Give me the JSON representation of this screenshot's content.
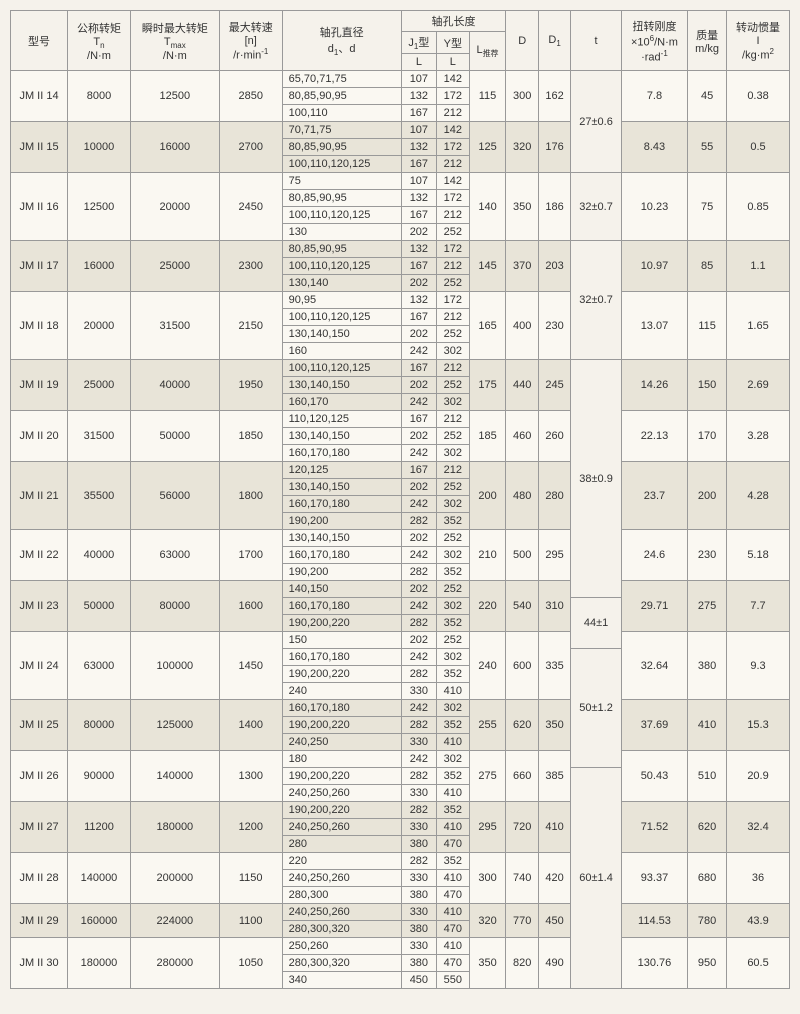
{
  "headers": {
    "model": "型号",
    "tn": "公称转矩<br>T<sub>n</sub><br>/N·m",
    "tmax": "瞬时最大转矩<br>T<sub>max</sub><br>/N·m",
    "n": "最大转速<br>[n]<br>/r·min<sup>-1</sup>",
    "diameter": "轴孔直径<br>d<sub>1</sub>、d",
    "length": "轴孔长度",
    "j1": "J<sub>1</sub>型",
    "y": "Y型",
    "lrec": "L<sub>推荐</sub>",
    "L": "L",
    "D": "D",
    "D1": "D<sub>1</sub>",
    "t": "t",
    "stiffness": "扭转刚度<br>×10<sup>6</sup>/N·m<br>·rad<sup>-1</sup>",
    "mass": "质量<br>m/kg",
    "inertia": "转动惯量<br>I<br>/kg·m<sup>2</sup>"
  },
  "groups": [
    {
      "model": "JM II 14",
      "tn": "8000",
      "tmax": "12500",
      "n": "2850",
      "dim": {
        "D": "115",
        "D1": "300",
        "t": "162"
      },
      "tgroup": "27±0.6",
      "stiff": "7.8",
      "mass": "45",
      "inertia": "0.38",
      "rows": [
        {
          "d": "65,70,71,75",
          "j": "107",
          "y": "142"
        },
        {
          "d": "80,85,90,95",
          "j": "132",
          "y": "172"
        },
        {
          "d": "100,110",
          "j": "167",
          "y": "212"
        }
      ],
      "alt": false
    },
    {
      "model": "JM II 15",
      "tn": "10000",
      "tmax": "16000",
      "n": "2700",
      "dim": {
        "D": "125",
        "D1": "320",
        "t": "176"
      },
      "stiff": "8.43",
      "mass": "55",
      "inertia": "0.5",
      "rows": [
        {
          "d": "70,71,75",
          "j": "107",
          "y": "142"
        },
        {
          "d": "80,85,90,95",
          "j": "132",
          "y": "172"
        },
        {
          "d": "100,110,120,125",
          "j": "167",
          "y": "212"
        }
      ],
      "alt": true
    },
    {
      "model": "JM II 16",
      "tn": "12500",
      "tmax": "20000",
      "n": "2450",
      "dim": {
        "D": "140",
        "D1": "350",
        "t": "186"
      },
      "tgroup": "32±0.7",
      "stiff": "10.23",
      "mass": "75",
      "inertia": "0.85",
      "rows": [
        {
          "d": "75",
          "j": "107",
          "y": "142"
        },
        {
          "d": "80,85,90,95",
          "j": "132",
          "y": "172"
        },
        {
          "d": "100,110,120,125",
          "j": "167",
          "y": "212"
        },
        {
          "d": "130",
          "j": "202",
          "y": "252"
        }
      ],
      "alt": false
    },
    {
      "model": "JM II 17",
      "tn": "16000",
      "tmax": "25000",
      "n": "2300",
      "dim": {
        "D": "145",
        "D1": "370",
        "t": "203"
      },
      "tgroup": "32±0.7",
      "stiff": "10.97",
      "mass": "85",
      "inertia": "1.1",
      "rows": [
        {
          "d": "80,85,90,95",
          "j": "132",
          "y": "172"
        },
        {
          "d": "100,110,120,125",
          "j": "167",
          "y": "212"
        },
        {
          "d": "130,140",
          "j": "202",
          "y": "252"
        }
      ],
      "alt": true
    },
    {
      "model": "JM II 18",
      "tn": "20000",
      "tmax": "31500",
      "n": "2150",
      "dim": {
        "D": "165",
        "D1": "400",
        "t": "230"
      },
      "stiff": "13.07",
      "mass": "115",
      "inertia": "1.65",
      "rows": [
        {
          "d": "90,95",
          "j": "132",
          "y": "172"
        },
        {
          "d": "100,110,120,125",
          "j": "167",
          "y": "212"
        },
        {
          "d": "130,140,150",
          "j": "202",
          "y": "252"
        },
        {
          "d": "160",
          "j": "242",
          "y": "302"
        }
      ],
      "alt": false
    },
    {
      "model": "JM II 19",
      "tn": "25000",
      "tmax": "40000",
      "n": "1950",
      "dim": {
        "D": "175",
        "D1": "440",
        "t": "245"
      },
      "tgroup": "38±0.9",
      "stiff": "14.26",
      "mass": "150",
      "inertia": "2.69",
      "rows": [
        {
          "d": "100,110,120,125",
          "j": "167",
          "y": "212"
        },
        {
          "d": "130,140,150",
          "j": "202",
          "y": "252"
        },
        {
          "d": "160,170",
          "j": "242",
          "y": "302"
        }
      ],
      "alt": true
    },
    {
      "model": "JM II 20",
      "tn": "31500",
      "tmax": "50000",
      "n": "1850",
      "dim": {
        "D": "185",
        "D1": "460",
        "t": "260"
      },
      "stiff": "22.13",
      "mass": "170",
      "inertia": "3.28",
      "rows": [
        {
          "d": "110,120,125",
          "j": "167",
          "y": "212"
        },
        {
          "d": "130,140,150",
          "j": "202",
          "y": "252"
        },
        {
          "d": "160,170,180",
          "j": "242",
          "y": "302"
        }
      ],
      "alt": false
    },
    {
      "model": "JM II 21",
      "tn": "35500",
      "tmax": "56000",
      "n": "1800",
      "dim": {
        "D": "200",
        "D1": "480",
        "t": "280"
      },
      "stiff": "23.7",
      "mass": "200",
      "inertia": "4.28",
      "rows": [
        {
          "d": "120,125",
          "j": "167",
          "y": "212"
        },
        {
          "d": "130,140,150",
          "j": "202",
          "y": "252"
        },
        {
          "d": "160,170,180",
          "j": "242",
          "y": "302"
        },
        {
          "d": "190,200",
          "j": "282",
          "y": "352"
        }
      ],
      "alt": true
    },
    {
      "model": "JM II 22",
      "tn": "40000",
      "tmax": "63000",
      "n": "1700",
      "dim": {
        "D": "210",
        "D1": "500",
        "t": "295"
      },
      "stiff": "24.6",
      "mass": "230",
      "inertia": "5.18",
      "rows": [
        {
          "d": "130,140,150",
          "j": "202",
          "y": "252"
        },
        {
          "d": "160,170,180",
          "j": "242",
          "y": "302"
        },
        {
          "d": "190,200",
          "j": "282",
          "y": "352"
        }
      ],
      "alt": false
    },
    {
      "model": "JM II 23",
      "tn": "50000",
      "tmax": "80000",
      "n": "1600",
      "dim": {
        "D": "220",
        "D1": "540",
        "t": "310"
      },
      "tgroup": "44±1",
      "stiff": "29.71",
      "mass": "275",
      "inertia": "7.7",
      "rows": [
        {
          "d": "140,150",
          "j": "202",
          "y": "252"
        },
        {
          "d": "160,170,180",
          "j": "242",
          "y": "302"
        },
        {
          "d": "190,200,220",
          "j": "282",
          "y": "352"
        }
      ],
      "alt": true
    },
    {
      "model": "JM II 24",
      "tn": "63000",
      "tmax": "100000",
      "n": "1450",
      "dim": {
        "D": "240",
        "D1": "600",
        "t": "335"
      },
      "tgroup": "50±1.2",
      "stiff": "32.64",
      "mass": "380",
      "inertia": "9.3",
      "rows": [
        {
          "d": "150",
          "j": "202",
          "y": "252"
        },
        {
          "d": "160,170,180",
          "j": "242",
          "y": "302"
        },
        {
          "d": "190,200,220",
          "j": "282",
          "y": "352"
        },
        {
          "d": "240",
          "j": "330",
          "y": "410"
        }
      ],
      "alt": false
    },
    {
      "model": "JM II 25",
      "tn": "80000",
      "tmax": "125000",
      "n": "1400",
      "dim": {
        "D": "255",
        "D1": "620",
        "t": "350"
      },
      "stiff": "37.69",
      "mass": "410",
      "inertia": "15.3",
      "rows": [
        {
          "d": "160,170,180",
          "j": "242",
          "y": "302"
        },
        {
          "d": "190,200,220",
          "j": "282",
          "y": "352"
        },
        {
          "d": "240,250",
          "j": "330",
          "y": "410"
        }
      ],
      "alt": true
    },
    {
      "model": "JM II 26",
      "tn": "90000",
      "tmax": "140000",
      "n": "1300",
      "dim": {
        "D": "275",
        "D1": "660",
        "t": "385"
      },
      "stiff": "50.43",
      "mass": "510",
      "inertia": "20.9",
      "rows": [
        {
          "d": "180",
          "j": "242",
          "y": "302"
        },
        {
          "d": "190,200,220",
          "j": "282",
          "y": "352"
        },
        {
          "d": "240,250,260",
          "j": "330",
          "y": "410"
        }
      ],
      "alt": false
    },
    {
      "model": "JM II 27",
      "tn": "11200",
      "tmax": "180000",
      "n": "1200",
      "dim": {
        "D": "295",
        "D1": "720",
        "t": "410"
      },
      "tgroup": "60±1.4",
      "stiff": "71.52",
      "mass": "620",
      "inertia": "32.4",
      "rows": [
        {
          "d": "190,200,220",
          "j": "282",
          "y": "352"
        },
        {
          "d": "240,250,260",
          "j": "330",
          "y": "410"
        },
        {
          "d": "280",
          "j": "380",
          "y": "470"
        }
      ],
      "alt": true
    },
    {
      "model": "JM II 28",
      "tn": "140000",
      "tmax": "200000",
      "n": "1150",
      "dim": {
        "D": "300",
        "D1": "740",
        "t": "420"
      },
      "stiff": "93.37",
      "mass": "680",
      "inertia": "36",
      "rows": [
        {
          "d": "220",
          "j": "282",
          "y": "352"
        },
        {
          "d": "240,250,260",
          "j": "330",
          "y": "410"
        },
        {
          "d": "280,300",
          "j": "380",
          "y": "470"
        }
      ],
      "alt": false
    },
    {
      "model": "JM II 29",
      "tn": "160000",
      "tmax": "224000",
      "n": "1100",
      "dim": {
        "D": "320",
        "D1": "770",
        "t": "450"
      },
      "stiff": "114.53",
      "mass": "780",
      "inertia": "43.9",
      "rows": [
        {
          "d": "240,250,260",
          "j": "330",
          "y": "410"
        },
        {
          "d": "280,300,320",
          "j": "380",
          "y": "470"
        }
      ],
      "alt": true
    },
    {
      "model": "JM II 30",
      "tn": "180000",
      "tmax": "280000",
      "n": "1050",
      "dim": {
        "D": "350",
        "D1": "820",
        "t": "490"
      },
      "stiff": "130.76",
      "mass": "950",
      "inertia": "60.5",
      "rows": [
        {
          "d": "250,260",
          "j": "330",
          "y": "410"
        },
        {
          "d": "280,300,320",
          "j": "380",
          "y": "470"
        },
        {
          "d": "340",
          "j": "450",
          "y": "550"
        }
      ],
      "alt": false
    }
  ],
  "tgroupSpans": [
    {
      "start": 0,
      "span": 6,
      "val": "27±0.6"
    },
    {
      "start": 6,
      "span": 4,
      "val": "32±0.7"
    },
    {
      "start": 10,
      "span": 7,
      "val": "32±0.7"
    },
    {
      "start": 17,
      "span": 14,
      "val": "38±0.9"
    },
    {
      "start": 31,
      "span": 3,
      "val": "44±1"
    },
    {
      "start": 34,
      "span": 7,
      "val": "50±1.2"
    },
    {
      "start": 41,
      "span": 14,
      "val": "60±1.4"
    }
  ]
}
